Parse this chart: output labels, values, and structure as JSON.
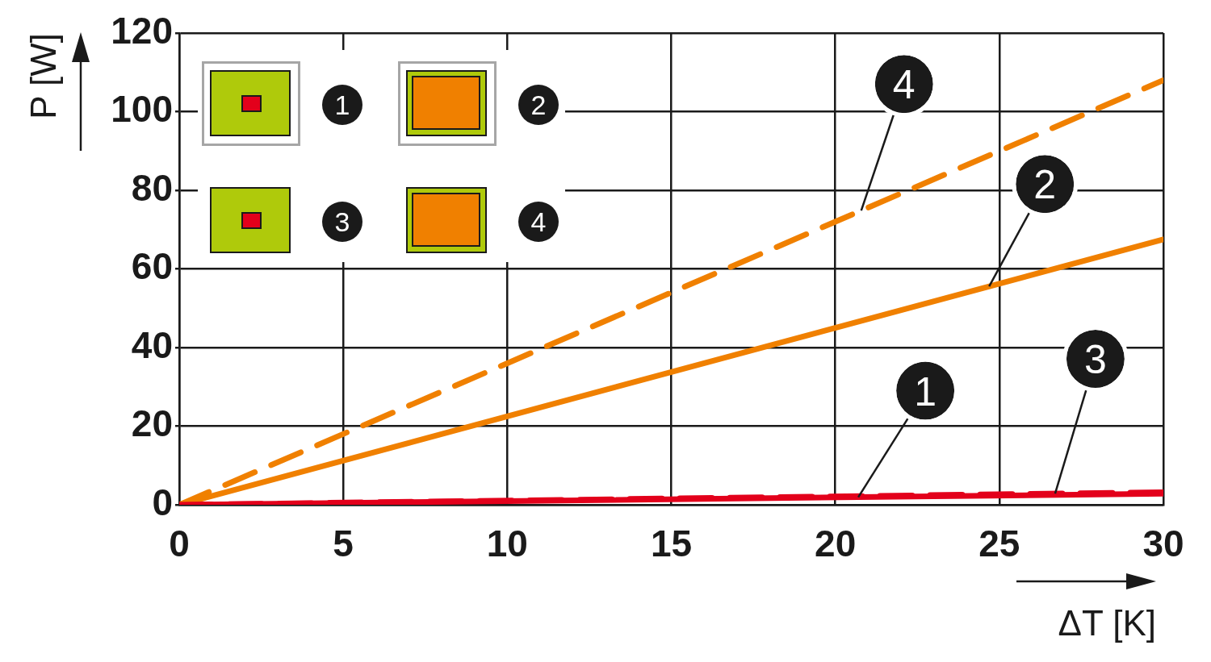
{
  "chart_data": {
    "type": "line",
    "xlabel": "ΔT [K]",
    "ylabel": "P [W]",
    "x": [
      0,
      30
    ],
    "xlim": [
      0,
      30
    ],
    "ylim": [
      0,
      120
    ],
    "xticks": [
      0,
      5,
      10,
      15,
      20,
      25,
      30
    ],
    "yticks": [
      0,
      20,
      40,
      60,
      80,
      100,
      120
    ],
    "grid": true,
    "legend": "top left",
    "marker": "none",
    "series": [
      {
        "name": "1",
        "color": "#e3001b",
        "values": [
          0,
          2.8
        ],
        "line_style": "solid"
      },
      {
        "name": "2",
        "color": "#f08000",
        "values": [
          0,
          67.5
        ],
        "line_style": "solid"
      },
      {
        "name": "3",
        "color": "#e3001b",
        "values": [
          0,
          3.2
        ],
        "line_style": "dashed"
      },
      {
        "name": "4",
        "color": "#f08000",
        "values": [
          0,
          108
        ],
        "line_style": "dashed"
      }
    ]
  }
}
